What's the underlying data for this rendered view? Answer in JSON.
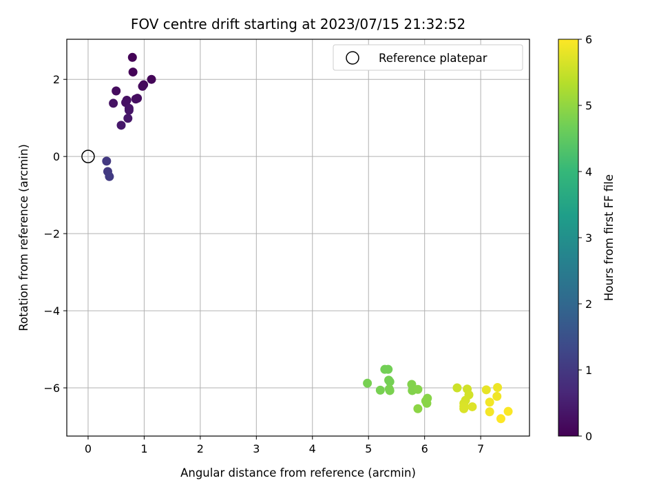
{
  "chart_data": {
    "type": "scatter",
    "title": "FOV centre drift starting at 2023/07/15 21:32:52",
    "xlabel": "Angular distance from reference (arcmin)",
    "ylabel": "Rotation from reference (arcmin)",
    "xlim": [
      -0.38,
      7.87
    ],
    "ylim": [
      -7.25,
      3.04
    ],
    "x_ticks": [
      0,
      1,
      2,
      3,
      4,
      5,
      6,
      7
    ],
    "y_ticks": [
      2,
      0,
      -2,
      -4,
      -6
    ],
    "x_tick_labels": [
      "0",
      "1",
      "2",
      "3",
      "4",
      "5",
      "6",
      "7"
    ],
    "y_tick_labels": [
      "2",
      "0",
      "−2",
      "−4",
      "−6"
    ],
    "grid": true,
    "legend": {
      "placement": "top-right",
      "entries": [
        "Reference platepar"
      ]
    },
    "reference_point": {
      "x": 0,
      "y": 0
    },
    "colorbar": {
      "label": "Hours from first FF file",
      "colormap": "viridis",
      "range": [
        0,
        6
      ],
      "ticks": [
        "0",
        "1",
        "2",
        "3",
        "4",
        "5",
        "6"
      ]
    },
    "colormap_stops": [
      "#440154",
      "#482878",
      "#3e4989",
      "#31688e",
      "#26828e",
      "#1f9e89",
      "#35b779",
      "#6ece58",
      "#b5de2b",
      "#fde725"
    ],
    "points": [
      {
        "x": 0.79,
        "y": 2.57,
        "c": 0.03
      },
      {
        "x": 0.8,
        "y": 2.19,
        "c": 0.05
      },
      {
        "x": 1.13,
        "y": 2.0,
        "c": 0.08
      },
      {
        "x": 0.99,
        "y": 1.86,
        "c": 0.12
      },
      {
        "x": 0.97,
        "y": 1.82,
        "c": 0.15
      },
      {
        "x": 0.5,
        "y": 1.7,
        "c": 0.18
      },
      {
        "x": 0.88,
        "y": 1.51,
        "c": 0.2
      },
      {
        "x": 0.85,
        "y": 1.49,
        "c": 0.22
      },
      {
        "x": 0.69,
        "y": 1.46,
        "c": 0.25
      },
      {
        "x": 0.67,
        "y": 1.4,
        "c": 0.28
      },
      {
        "x": 0.45,
        "y": 1.38,
        "c": 0.3
      },
      {
        "x": 0.73,
        "y": 1.25,
        "c": 0.33
      },
      {
        "x": 0.73,
        "y": 1.2,
        "c": 0.35
      },
      {
        "x": 0.71,
        "y": 0.99,
        "c": 0.38
      },
      {
        "x": 0.59,
        "y": 0.81,
        "c": 0.4
      },
      {
        "x": 0.33,
        "y": -0.12,
        "c": 1.0
      },
      {
        "x": 0.35,
        "y": -0.39,
        "c": 1.03
      },
      {
        "x": 0.38,
        "y": -0.52,
        "c": 1.05
      },
      {
        "x": 5.29,
        "y": -5.52,
        "c": 4.7
      },
      {
        "x": 5.35,
        "y": -5.52,
        "c": 4.7
      },
      {
        "x": 5.36,
        "y": -5.8,
        "c": 4.72
      },
      {
        "x": 5.38,
        "y": -5.84,
        "c": 4.72
      },
      {
        "x": 4.98,
        "y": -5.88,
        "c": 4.75
      },
      {
        "x": 5.21,
        "y": -6.06,
        "c": 4.75
      },
      {
        "x": 5.37,
        "y": -6.03,
        "c": 4.78
      },
      {
        "x": 5.38,
        "y": -6.07,
        "c": 4.78
      },
      {
        "x": 5.77,
        "y": -5.91,
        "c": 4.85
      },
      {
        "x": 5.78,
        "y": -6.07,
        "c": 4.85
      },
      {
        "x": 5.88,
        "y": -6.04,
        "c": 4.88
      },
      {
        "x": 6.05,
        "y": -6.27,
        "c": 4.9
      },
      {
        "x": 6.02,
        "y": -6.34,
        "c": 4.92
      },
      {
        "x": 6.04,
        "y": -6.4,
        "c": 4.92
      },
      {
        "x": 5.88,
        "y": -6.54,
        "c": 4.95
      },
      {
        "x": 6.58,
        "y": -6.0,
        "c": 5.55
      },
      {
        "x": 6.76,
        "y": -6.03,
        "c": 5.58
      },
      {
        "x": 6.79,
        "y": -6.18,
        "c": 5.6
      },
      {
        "x": 6.73,
        "y": -6.32,
        "c": 5.62
      },
      {
        "x": 6.7,
        "y": -6.4,
        "c": 5.65
      },
      {
        "x": 6.7,
        "y": -6.48,
        "c": 5.67
      },
      {
        "x": 6.7,
        "y": -6.54,
        "c": 5.68
      },
      {
        "x": 6.85,
        "y": -6.49,
        "c": 5.7
      },
      {
        "x": 7.1,
        "y": -6.05,
        "c": 5.8
      },
      {
        "x": 7.3,
        "y": -5.99,
        "c": 5.85
      },
      {
        "x": 7.29,
        "y": -6.22,
        "c": 5.88
      },
      {
        "x": 7.16,
        "y": -6.37,
        "c": 5.9
      },
      {
        "x": 7.16,
        "y": -6.62,
        "c": 5.92
      },
      {
        "x": 7.49,
        "y": -6.61,
        "c": 5.97
      },
      {
        "x": 7.36,
        "y": -6.8,
        "c": 6.0
      }
    ]
  }
}
